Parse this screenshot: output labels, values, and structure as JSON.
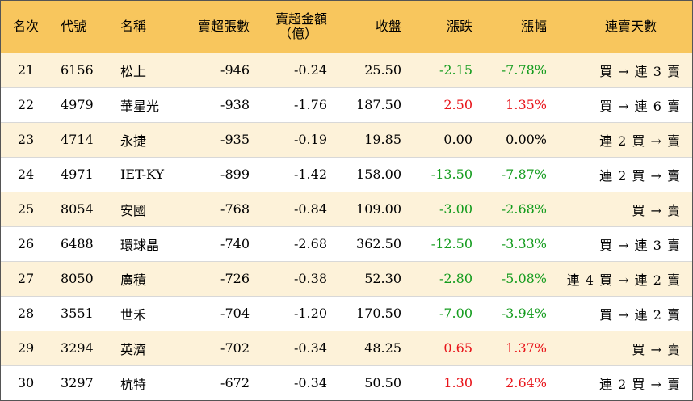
{
  "headers": {
    "rank": "名次",
    "code": "代號",
    "name": "名稱",
    "net_sell_lots": "賣超張數",
    "net_sell_amount_line1": "賣超金額",
    "net_sell_amount_line2": "（億）",
    "close": "收盤",
    "change": "漲跌",
    "change_pct": "漲幅",
    "streak": "連賣天數"
  },
  "colors": {
    "header_bg": "#f8c65d",
    "row_odd_bg": "#fdf2d9",
    "row_even_bg": "#ffffff",
    "up": "#e8141a",
    "down": "#149c1e",
    "flat": "#000000"
  },
  "rows": [
    {
      "rank": "21",
      "code": "6156",
      "name": "松上",
      "lots": "-946",
      "amount": "-0.24",
      "close": "25.50",
      "change": "-2.15",
      "pct": "-7.78%",
      "streak": "買 → 連 3 賣",
      "dir": "down"
    },
    {
      "rank": "22",
      "code": "4979",
      "name": "華星光",
      "lots": "-938",
      "amount": "-1.76",
      "close": "187.50",
      "change": "2.50",
      "pct": "1.35%",
      "streak": "買 → 連 6 賣",
      "dir": "up"
    },
    {
      "rank": "23",
      "code": "4714",
      "name": "永捷",
      "lots": "-935",
      "amount": "-0.19",
      "close": "19.85",
      "change": "0.00",
      "pct": "0.00%",
      "streak": "連 2 買 → 賣",
      "dir": "flat"
    },
    {
      "rank": "24",
      "code": "4971",
      "name": "IET-KY",
      "lots": "-899",
      "amount": "-1.42",
      "close": "158.00",
      "change": "-13.50",
      "pct": "-7.87%",
      "streak": "連 2 買 → 賣",
      "dir": "down"
    },
    {
      "rank": "25",
      "code": "8054",
      "name": "安國",
      "lots": "-768",
      "amount": "-0.84",
      "close": "109.00",
      "change": "-3.00",
      "pct": "-2.68%",
      "streak": "買 → 賣",
      "dir": "down"
    },
    {
      "rank": "26",
      "code": "6488",
      "name": "環球晶",
      "lots": "-740",
      "amount": "-2.68",
      "close": "362.50",
      "change": "-12.50",
      "pct": "-3.33%",
      "streak": "買 → 連 3 賣",
      "dir": "down"
    },
    {
      "rank": "27",
      "code": "8050",
      "name": "廣積",
      "lots": "-726",
      "amount": "-0.38",
      "close": "52.30",
      "change": "-2.80",
      "pct": "-5.08%",
      "streak": "連 4 買 → 連 2 賣",
      "dir": "down"
    },
    {
      "rank": "28",
      "code": "3551",
      "name": "世禾",
      "lots": "-704",
      "amount": "-1.20",
      "close": "170.50",
      "change": "-7.00",
      "pct": "-3.94%",
      "streak": "買 → 連 2 賣",
      "dir": "down"
    },
    {
      "rank": "29",
      "code": "3294",
      "name": "英濟",
      "lots": "-702",
      "amount": "-0.34",
      "close": "48.25",
      "change": "0.65",
      "pct": "1.37%",
      "streak": "買 → 賣",
      "dir": "up"
    },
    {
      "rank": "30",
      "code": "3297",
      "name": "杭特",
      "lots": "-672",
      "amount": "-0.34",
      "close": "50.50",
      "change": "1.30",
      "pct": "2.64%",
      "streak": "連 2 買 → 賣",
      "dir": "up"
    }
  ]
}
